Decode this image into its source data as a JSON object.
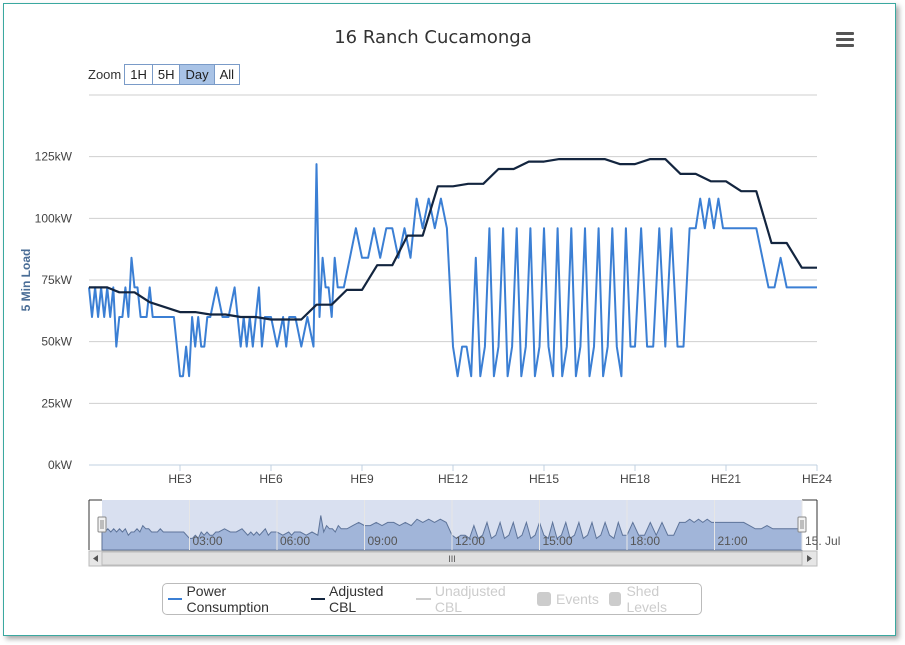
{
  "title": "16 Ranch Cucamonga",
  "zoom": {
    "label": "Zoom",
    "buttons": [
      "1H",
      "5H",
      "Day",
      "All"
    ],
    "active": "Day"
  },
  "y_axis_title": "5 Min Load",
  "navigator": {
    "tick_labels": [
      "03:00",
      "06:00",
      "09:00",
      "12:00",
      "15:00",
      "18:00",
      "21:00",
      "15. Jul"
    ],
    "scrollbar_grip": "III"
  },
  "legend": [
    {
      "name": "Power Consumption",
      "color": "#3b7fd4",
      "kind": "line",
      "visible": true
    },
    {
      "name": "Adjusted CBL",
      "color": "#13253f",
      "kind": "line",
      "visible": true
    },
    {
      "name": "Unadjusted CBL",
      "color": "#cccccc",
      "kind": "line",
      "visible": false
    },
    {
      "name": "Events",
      "color": "#cccccc",
      "kind": "box",
      "visible": false
    },
    {
      "name": "Shed Levels",
      "color": "#cccccc",
      "kind": "box",
      "visible": false
    }
  ],
  "chart_data": {
    "type": "line",
    "title": "16 Ranch Cucamonga",
    "ylabel": "5 Min Load",
    "ylim": [
      0,
      150
    ],
    "ytick_values": [
      0,
      25,
      50,
      75,
      100,
      125
    ],
    "ytick_labels": [
      "0kW",
      "25kW",
      "50kW",
      "75kW",
      "100kW",
      "125kW"
    ],
    "xlim": [
      0,
      24
    ],
    "xtick_values": [
      3,
      6,
      9,
      12,
      15,
      18,
      21,
      24
    ],
    "xtick_labels": [
      "HE3",
      "HE6",
      "HE9",
      "HE12",
      "HE15",
      "HE18",
      "HE21",
      "HE24"
    ],
    "grid": true,
    "legend_position": "bottom",
    "series": [
      {
        "name": "Power Consumption",
        "color": "#3b7fd4",
        "x": [
          0,
          0.1,
          0.2,
          0.3,
          0.4,
          0.5,
          0.6,
          0.7,
          0.8,
          0.9,
          1.0,
          1.1,
          1.2,
          1.3,
          1.4,
          1.5,
          1.6,
          1.7,
          1.8,
          1.9,
          2.0,
          2.1,
          2.2,
          2.4,
          2.6,
          2.8,
          3.0,
          3.1,
          3.2,
          3.3,
          3.4,
          3.5,
          3.6,
          3.7,
          3.8,
          3.9,
          4.0,
          4.2,
          4.4,
          4.6,
          4.8,
          5.0,
          5.1,
          5.2,
          5.3,
          5.4,
          5.6,
          5.7,
          5.8,
          6.0,
          6.2,
          6.4,
          6.5,
          6.6,
          6.8,
          7.0,
          7.2,
          7.4,
          7.5,
          7.6,
          7.7,
          7.8,
          7.9,
          8.0,
          8.1,
          8.2,
          8.4,
          8.6,
          8.8,
          9.0,
          9.2,
          9.4,
          9.6,
          9.8,
          10.0,
          10.2,
          10.4,
          10.6,
          10.8,
          11.0,
          11.2,
          11.4,
          11.6,
          11.8,
          12.0,
          12.15,
          12.3,
          12.45,
          12.6,
          12.75,
          12.9,
          13.05,
          13.2,
          13.35,
          13.5,
          13.65,
          13.8,
          13.95,
          14.1,
          14.25,
          14.4,
          14.55,
          14.7,
          14.85,
          15.0,
          15.15,
          15.3,
          15.45,
          15.6,
          15.75,
          15.9,
          16.05,
          16.2,
          16.35,
          16.5,
          16.65,
          16.8,
          16.95,
          17.1,
          17.25,
          17.4,
          17.55,
          17.7,
          17.85,
          18.0,
          18.2,
          18.4,
          18.6,
          18.8,
          19.0,
          19.2,
          19.4,
          19.6,
          19.8,
          20.0,
          20.15,
          20.3,
          20.45,
          20.6,
          20.75,
          20.9,
          21.05,
          21.2,
          21.4,
          21.6,
          21.8,
          22.0,
          22.2,
          22.4,
          22.6,
          22.8,
          23.0,
          23.2,
          23.4,
          23.6,
          23.8,
          24.0
        ],
        "y": [
          72,
          60,
          72,
          60,
          72,
          60,
          72,
          60,
          72,
          48,
          60,
          60,
          72,
          60,
          84,
          72,
          72,
          60,
          60,
          60,
          72,
          60,
          60,
          60,
          60,
          60,
          36,
          36,
          48,
          36,
          60,
          48,
          60,
          48,
          48,
          60,
          60,
          72,
          60,
          60,
          72,
          48,
          60,
          48,
          60,
          48,
          72,
          48,
          60,
          60,
          48,
          60,
          48,
          60,
          60,
          48,
          60,
          48,
          122,
          60,
          84,
          72,
          72,
          60,
          84,
          72,
          72,
          84,
          96,
          84,
          84,
          96,
          84,
          96,
          96,
          84,
          96,
          84,
          108,
          96,
          108,
          96,
          108,
          96,
          48,
          36,
          48,
          48,
          36,
          84,
          36,
          48,
          96,
          36,
          48,
          96,
          36,
          48,
          96,
          36,
          48,
          96,
          36,
          48,
          96,
          48,
          36,
          96,
          36,
          48,
          96,
          36,
          48,
          96,
          36,
          48,
          96,
          36,
          48,
          96,
          48,
          36,
          96,
          48,
          48,
          96,
          48,
          48,
          96,
          48,
          96,
          48,
          48,
          96,
          96,
          108,
          96,
          108,
          96,
          108,
          96,
          96,
          96,
          96,
          96,
          96,
          96,
          84,
          72,
          72,
          84,
          72,
          72,
          72,
          72,
          72,
          72
        ]
      },
      {
        "name": "Adjusted CBL",
        "color": "#13253f",
        "x": [
          0,
          0.6,
          1.0,
          1.5,
          2.0,
          3.0,
          3.5,
          4.0,
          4.5,
          5.0,
          5.5,
          6.0,
          6.5,
          7.0,
          7.5,
          8.0,
          8.5,
          9.0,
          9.5,
          10.0,
          10.5,
          11.0,
          11.5,
          12.0,
          12.5,
          13.0,
          13.5,
          14.0,
          14.5,
          15.0,
          15.5,
          16.0,
          16.5,
          17.0,
          17.5,
          18.0,
          18.5,
          19.0,
          19.5,
          20.0,
          20.5,
          21.0,
          21.5,
          22.0,
          22.5,
          23.0,
          23.5,
          24.0
        ],
        "y": [
          72,
          72,
          70,
          70,
          66,
          62,
          62,
          61,
          61,
          60,
          60,
          59,
          59,
          59,
          65,
          65,
          71,
          71,
          81,
          81,
          93,
          93,
          113,
          113,
          114,
          114,
          120,
          120,
          123,
          123,
          124,
          124,
          124,
          124,
          122,
          122,
          124,
          124,
          118,
          118,
          115,
          115,
          111,
          111,
          90,
          90,
          80,
          80
        ]
      }
    ]
  }
}
